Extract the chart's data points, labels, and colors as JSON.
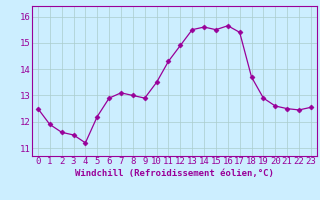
{
  "x": [
    0,
    1,
    2,
    3,
    4,
    5,
    6,
    7,
    8,
    9,
    10,
    11,
    12,
    13,
    14,
    15,
    16,
    17,
    18,
    19,
    20,
    21,
    22,
    23
  ],
  "y": [
    12.5,
    11.9,
    11.6,
    11.5,
    11.2,
    12.2,
    12.9,
    13.1,
    13.0,
    12.9,
    13.5,
    14.3,
    14.9,
    15.5,
    15.6,
    15.5,
    15.65,
    15.4,
    13.7,
    12.9,
    12.6,
    12.5,
    12.45,
    12.55
  ],
  "line_color": "#990099",
  "marker": "D",
  "marker_size": 2.5,
  "bg_color": "#cceeff",
  "grid_color": "#aacccc",
  "ylabel_ticks": [
    11,
    12,
    13,
    14,
    15,
    16
  ],
  "xlabel": "Windchill (Refroidissement éolien,°C)",
  "xlabel_fontsize": 6.5,
  "tick_fontsize": 6.5,
  "ylim": [
    10.7,
    16.4
  ],
  "xlim": [
    -0.5,
    23.5
  ]
}
